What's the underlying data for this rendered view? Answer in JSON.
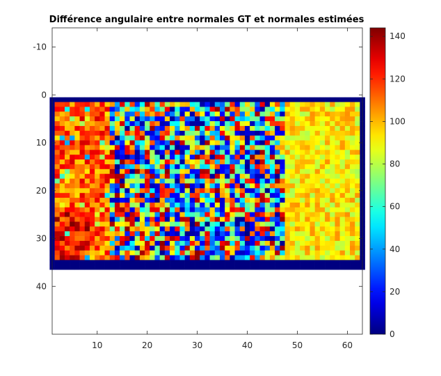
{
  "chart_data": {
    "type": "heatmap",
    "title": "Différence angulaire entre normales GT et normales estimées",
    "xlabel": "",
    "ylabel": "",
    "x_range": [
      1,
      63
    ],
    "y_range": [
      -14,
      50
    ],
    "y_reversed": true,
    "x_ticks": [
      10,
      20,
      30,
      40,
      50,
      60
    ],
    "y_ticks": [
      -10,
      0,
      10,
      20,
      30,
      40
    ],
    "image_extent": {
      "columns": [
        1,
        63
      ],
      "rows": [
        1,
        36
      ]
    },
    "border_value": 0,
    "colormap": "jet",
    "colorbar": {
      "range": [
        0,
        144
      ],
      "ticks": [
        0,
        20,
        40,
        60,
        80,
        100,
        120,
        140
      ],
      "position": "right"
    },
    "grid": false,
    "pattern": [
      {
        "cols": [
          2,
          12
        ],
        "mean": 118,
        "note": "red/orange band"
      },
      {
        "cols": [
          13,
          47
        ],
        "mean": 70,
        "note": "mixed noisy values 0-144"
      },
      {
        "cols": [
          48,
          62
        ],
        "mean": 92,
        "note": "yellow band"
      }
    ]
  }
}
